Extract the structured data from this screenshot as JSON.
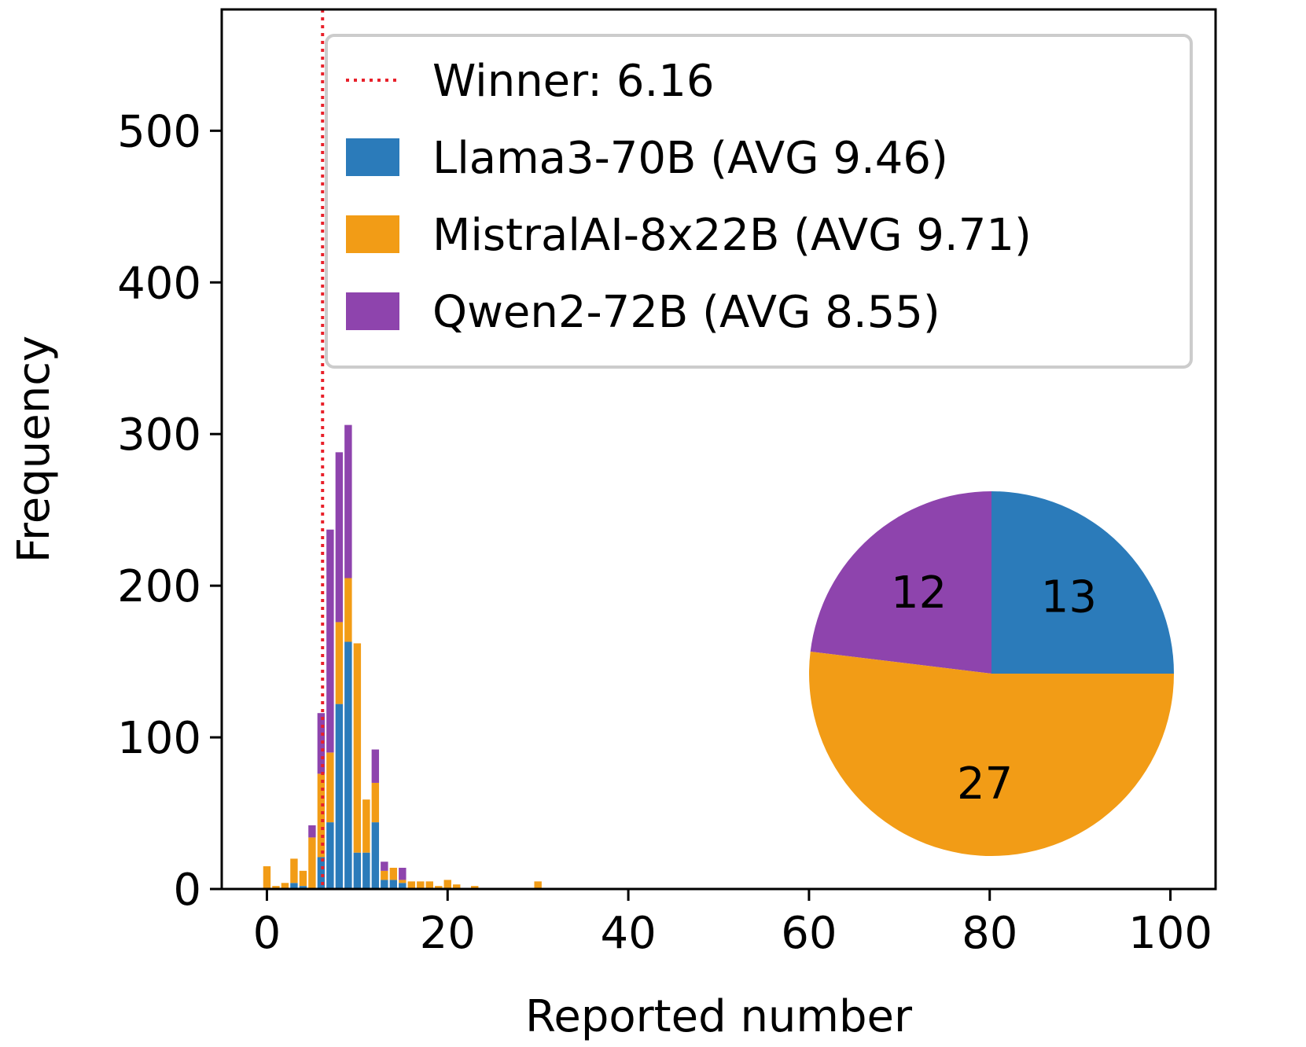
{
  "chart_data": {
    "type": "bar",
    "stacked": true,
    "xlabel": "Reported number",
    "ylabel": "Frequency",
    "xlim": [
      -5,
      105
    ],
    "ylim": [
      0,
      580
    ],
    "xticks": [
      0,
      20,
      40,
      60,
      80,
      100
    ],
    "yticks": [
      0,
      100,
      200,
      300,
      400,
      500
    ],
    "grid": false,
    "legend_position": "top-right",
    "winner": {
      "label": "Winner: 6.16",
      "value": 6.16,
      "color": "#e8212b"
    },
    "x": [
      0,
      1,
      2,
      3,
      4,
      5,
      6,
      7,
      8,
      9,
      10,
      11,
      12,
      13,
      14,
      15,
      16,
      17,
      18,
      19,
      20,
      21,
      23,
      30
    ],
    "series": [
      {
        "name": "Llama3-70B (AVG 9.46)",
        "color": "#2b7bba",
        "values": [
          0,
          0,
          0,
          4,
          2,
          0,
          21,
          44,
          122,
          163,
          24,
          24,
          44,
          6,
          6,
          4,
          0,
          0,
          0,
          0,
          0,
          0,
          0,
          0
        ]
      },
      {
        "name": "MistralAI-8x22B (AVG 9.71)",
        "color": "#f29c16",
        "values": [
          15,
          2,
          4,
          16,
          10,
          34,
          55,
          46,
          54,
          42,
          138,
          35,
          26,
          6,
          8,
          2,
          5,
          5,
          5,
          2,
          6,
          3,
          2,
          5
        ]
      },
      {
        "name": "Qwen2-72B (AVG 8.55)",
        "color": "#8e44ad",
        "values": [
          0,
          0,
          0,
          0,
          0,
          8,
          40,
          147,
          112,
          101,
          0,
          0,
          22,
          6,
          0,
          8,
          0,
          0,
          0,
          0,
          0,
          0,
          0,
          0
        ]
      }
    ],
    "inset_pie": {
      "type": "pie",
      "slices": [
        {
          "label": "13",
          "value": 13,
          "color": "#2b7bba"
        },
        {
          "label": "12",
          "value": 12,
          "color": "#8e44ad"
        },
        {
          "label": "27",
          "value": 27,
          "color": "#f29c16"
        }
      ]
    }
  }
}
